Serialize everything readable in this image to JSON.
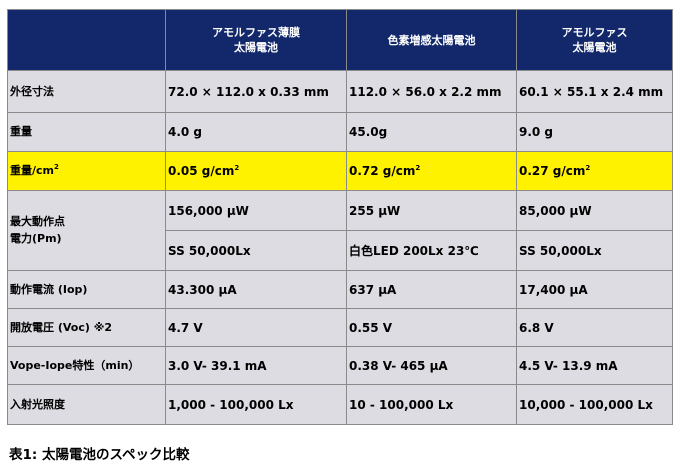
{
  "table": {
    "headers": [
      "",
      "アモルファス薄膜\n太陽電池",
      "色素増感太陽電池",
      "アモルファス\n太陽電池"
    ],
    "rows": {
      "size": {
        "label": "外径寸法",
        "cells": [
          "72.0 × 112.0 x 0.33 mm",
          "112.0 × 56.0 x 2.2 mm",
          "60.1 × 55.1 x 2.4 mm"
        ]
      },
      "weight": {
        "label": "重量",
        "cells": [
          "4.0 g",
          "45.0g",
          "9.0 g"
        ]
      },
      "density": {
        "label": "重量/cm",
        "sup": "2",
        "cells": [
          "0.05 g/cm",
          "0.72 g/cm",
          "0.27 g/cm"
        ]
      },
      "pmax": {
        "label": "最大動作点\n電力(Pm)",
        "cells": [
          "156,000 μW",
          "255 μW",
          "85,000 μW"
        ],
        "cond": [
          "SS 50,000Lx",
          "白色LED 200Lx 23℃",
          "SS 50,000Lx"
        ]
      },
      "iop": {
        "label": "動作電流 (Iop)",
        "cells": [
          "43.300 μA",
          "637 μA",
          "17,400 μA"
        ]
      },
      "voc": {
        "label": "開放電圧 (Voc) ※2",
        "cells": [
          "4.7 V",
          "0.55 V",
          "6.8 V"
        ]
      },
      "vope": {
        "label": "Vope-Iope特性（min）",
        "cells": [
          "3.0 V- 39.1 mA",
          "0.38 V- 465 μA",
          "4.5 V- 13.9 mA"
        ]
      },
      "lux": {
        "label": "入射光照度",
        "cells": [
          "1,000 - 100,000 Lx",
          "10 - 100,000 Lx",
          "10,000 - 100,000 Lx"
        ]
      }
    }
  },
  "caption": "表1: 太陽電池のスペック比較"
}
